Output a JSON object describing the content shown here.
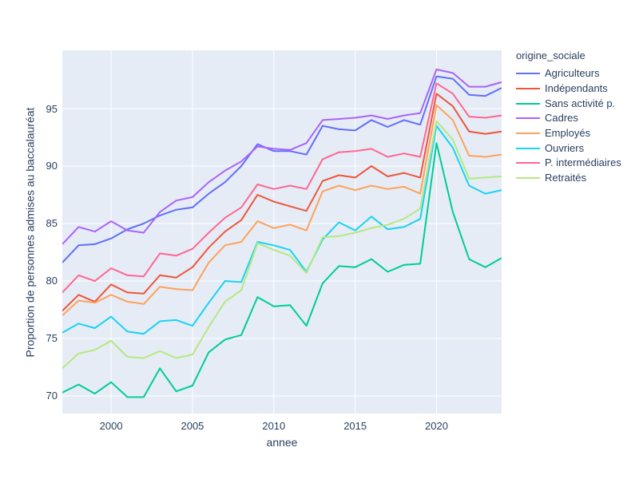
{
  "figure": {
    "bg": "#ffffff",
    "plot_bg": "#e5ecf6",
    "grid_color": "#ffffff",
    "text_color": "#2a3f5f"
  },
  "chart_data": {
    "type": "line",
    "title": "",
    "xlabel": "annee",
    "ylabel": "Proportion de personnes admises au baccalauréat",
    "legend_title": "origine_sociale",
    "legend_position": "right",
    "grid": true,
    "xlim": [
      1997,
      2024
    ],
    "ylim": [
      68.47,
      100.07
    ],
    "x_ticks": [
      2000,
      2005,
      2010,
      2015,
      2020
    ],
    "y_ticks": [
      70,
      75,
      80,
      85,
      90,
      95
    ],
    "x": [
      1997,
      1998,
      1999,
      2000,
      2001,
      2002,
      2003,
      2004,
      2005,
      2006,
      2007,
      2008,
      2009,
      2010,
      2011,
      2012,
      2013,
      2014,
      2015,
      2016,
      2017,
      2018,
      2019,
      2020,
      2021,
      2022,
      2023,
      2024
    ],
    "series": [
      {
        "name": "Agriculteurs",
        "color": "#636efa",
        "values": [
          81.6,
          83.1,
          83.2,
          83.7,
          84.5,
          85.0,
          85.7,
          86.2,
          86.4,
          87.6,
          88.6,
          90.0,
          91.9,
          91.3,
          91.3,
          91.0,
          93.5,
          93.2,
          93.1,
          94.0,
          93.4,
          94.0,
          93.6,
          97.8,
          97.6,
          96.2,
          96.1,
          96.8
        ]
      },
      {
        "name": "Indépendants",
        "color": "#ef553b",
        "values": [
          77.4,
          78.8,
          78.2,
          79.7,
          79.0,
          78.9,
          80.5,
          80.3,
          81.2,
          82.9,
          84.3,
          85.3,
          87.5,
          86.9,
          86.5,
          86.1,
          88.7,
          89.2,
          89.0,
          90.0,
          89.1,
          89.4,
          89.0,
          96.3,
          95.2,
          93.0,
          92.8,
          93.0
        ]
      },
      {
        "name": "Sans activité p.",
        "color": "#00cc96",
        "values": [
          70.3,
          71.0,
          70.2,
          71.2,
          69.9,
          69.9,
          72.4,
          70.4,
          70.9,
          73.8,
          74.9,
          75.3,
          78.6,
          77.8,
          77.9,
          76.1,
          79.8,
          81.3,
          81.2,
          81.9,
          80.8,
          81.4,
          81.5,
          92.0,
          86.0,
          81.9,
          81.2,
          82.0
        ]
      },
      {
        "name": "Cadres",
        "color": "#ab63fa",
        "values": [
          83.2,
          84.7,
          84.3,
          85.2,
          84.4,
          84.2,
          86.0,
          87.0,
          87.3,
          88.6,
          89.6,
          90.4,
          91.7,
          91.5,
          91.4,
          92.0,
          94.0,
          94.1,
          94.2,
          94.4,
          94.1,
          94.4,
          94.6,
          98.4,
          98.1,
          96.9,
          96.9,
          97.3
        ]
      },
      {
        "name": "Employés",
        "color": "#ffa15a",
        "values": [
          77.0,
          78.3,
          78.1,
          78.8,
          78.2,
          78.0,
          79.5,
          79.3,
          79.2,
          81.6,
          83.1,
          83.4,
          85.2,
          84.6,
          84.9,
          84.4,
          87.8,
          88.3,
          87.9,
          88.3,
          88.0,
          88.2,
          87.6,
          95.3,
          94.0,
          90.9,
          90.8,
          91.0
        ]
      },
      {
        "name": "Ouvriers",
        "color": "#19d3f3",
        "values": [
          75.5,
          76.3,
          75.9,
          76.9,
          75.6,
          75.4,
          76.5,
          76.6,
          76.1,
          78.1,
          80.0,
          79.9,
          83.4,
          83.1,
          82.7,
          80.8,
          83.6,
          85.1,
          84.4,
          85.6,
          84.5,
          84.7,
          85.4,
          93.5,
          91.6,
          88.3,
          87.6,
          87.9
        ]
      },
      {
        "name": "P. intermédiaires",
        "color": "#ff6692",
        "values": [
          79.0,
          80.5,
          80.0,
          81.1,
          80.5,
          80.4,
          82.4,
          82.2,
          82.8,
          84.2,
          85.5,
          86.4,
          88.4,
          88.0,
          88.3,
          88.0,
          90.6,
          91.2,
          91.3,
          91.5,
          90.8,
          91.1,
          90.8,
          97.2,
          96.3,
          94.3,
          94.2,
          94.4
        ]
      },
      {
        "name": "Retraités",
        "color": "#b6e880",
        "values": [
          72.4,
          73.7,
          74.0,
          74.8,
          73.4,
          73.3,
          73.9,
          73.3,
          73.6,
          76.0,
          78.2,
          79.2,
          83.3,
          82.7,
          82.2,
          80.7,
          83.8,
          83.9,
          84.2,
          84.6,
          84.9,
          85.4,
          86.3,
          93.9,
          92.3,
          88.9,
          89.0,
          89.1
        ]
      }
    ]
  }
}
